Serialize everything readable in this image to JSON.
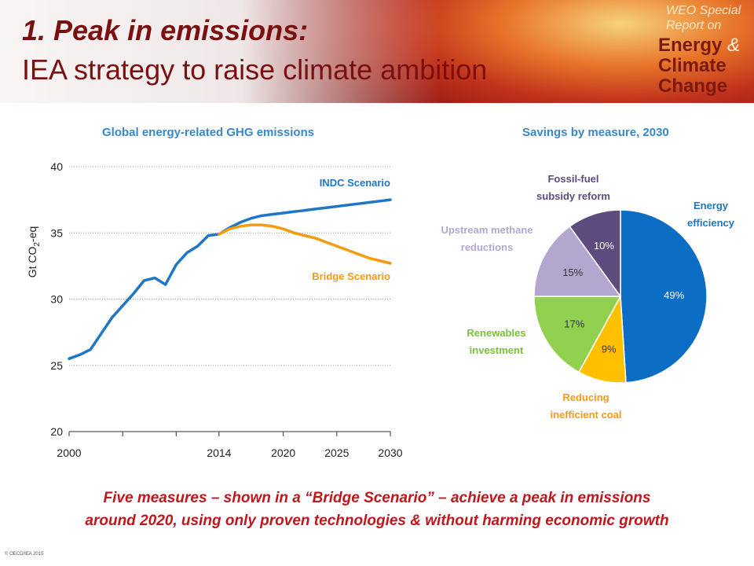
{
  "header": {
    "title_line1": "1. Peak in emissions:",
    "title_line2": "IEA strategy to raise climate ambition",
    "report_small_1": "WEO Special",
    "report_small_2": "Report on",
    "report_energy": "Energy",
    "report_amp": "&",
    "report_climate": "Climate",
    "report_change": "Change"
  },
  "chart_data": [
    {
      "type": "line",
      "title": "Global energy-related GHG emissions",
      "ylabel": "Gt CO2-eq",
      "ylabel_main": "Gt CO",
      "ylabel_sub": "2",
      "ylabel_tail": "-eq",
      "ylim": [
        20,
        40
      ],
      "xlim": [
        2000,
        2030
      ],
      "yticks": [
        20,
        25,
        30,
        35,
        40
      ],
      "xtick_labels": [
        {
          "year": 2000,
          "label": "2000"
        },
        {
          "year": 2014,
          "label": "2014"
        },
        {
          "year": 2020,
          "label": "2020"
        },
        {
          "year": 2025,
          "label": "2025"
        },
        {
          "year": 2030,
          "label": "2030"
        }
      ],
      "xtick_marks": [
        2000,
        2005,
        2010,
        2014,
        2020,
        2025,
        2030
      ],
      "grid": "horizontal dotted",
      "series": [
        {
          "name": "INDC Scenario",
          "color": "#1f77c4",
          "x": [
            2000,
            2001,
            2002,
            2003,
            2004,
            2005,
            2006,
            2007,
            2008,
            2009,
            2010,
            2011,
            2012,
            2013,
            2014,
            2015,
            2016,
            2017,
            2018,
            2019,
            2020,
            2021,
            2022,
            2023,
            2024,
            2025,
            2026,
            2027,
            2028,
            2029,
            2030
          ],
          "y": [
            25.5,
            25.8,
            26.2,
            27.4,
            28.6,
            29.5,
            30.4,
            31.4,
            31.6,
            31.1,
            32.6,
            33.5,
            34.0,
            34.8,
            34.9,
            35.4,
            35.8,
            36.1,
            36.3,
            36.4,
            36.5,
            36.6,
            36.7,
            36.8,
            36.9,
            37.0,
            37.1,
            37.2,
            37.3,
            37.4,
            37.5
          ]
        },
        {
          "name": "Bridge Scenario",
          "color": "#f39c12",
          "x": [
            2014,
            2015,
            2016,
            2017,
            2018,
            2019,
            2020,
            2021,
            2022,
            2023,
            2024,
            2025,
            2026,
            2027,
            2028,
            2029,
            2030
          ],
          "y": [
            34.9,
            35.3,
            35.5,
            35.6,
            35.6,
            35.5,
            35.3,
            35.0,
            34.8,
            34.6,
            34.3,
            34.0,
            33.7,
            33.4,
            33.1,
            32.9,
            32.7
          ]
        }
      ]
    },
    {
      "type": "pie",
      "title": "Savings by measure, 2030",
      "slices": [
        {
          "name": "Energy efficiency",
          "value": 49,
          "label": "49%",
          "color": "#0b6dc4",
          "legend": [
            "Energy",
            "efficiency"
          ],
          "legend_color": "#1f77c4"
        },
        {
          "name": "Reducing inefficient coal",
          "value": 9,
          "label": "9%",
          "color": "#ffc000",
          "legend": [
            "Reducing",
            "inefficient coal"
          ],
          "legend_color": "#f39c12"
        },
        {
          "name": "Renewables investment",
          "value": 17,
          "label": "17%",
          "color": "#92d050",
          "legend": [
            "Renewables",
            "investment"
          ],
          "legend_color": "#7cbf3c"
        },
        {
          "name": "Upstream methane reductions",
          "value": 15,
          "label": "15%",
          "color": "#b4a7cf",
          "legend": [
            "Upstream methane",
            "reductions"
          ],
          "legend_color": "#b4a7cf"
        },
        {
          "name": "Fossil-fuel subsidy reform",
          "value": 10,
          "label": "10%",
          "color": "#5e4b7e",
          "legend": [
            "Fossil-fuel",
            "subsidy reform"
          ],
          "legend_color": "#5e4b7e"
        }
      ]
    }
  ],
  "caption": {
    "line1": "Five measures – shown in a “Bridge Scenario” – achieve a peak in emissions",
    "line2": "around 2020, using only proven technologies & without harming economic growth"
  },
  "footer": {
    "copyright": "© OECD/IEA 2015"
  }
}
